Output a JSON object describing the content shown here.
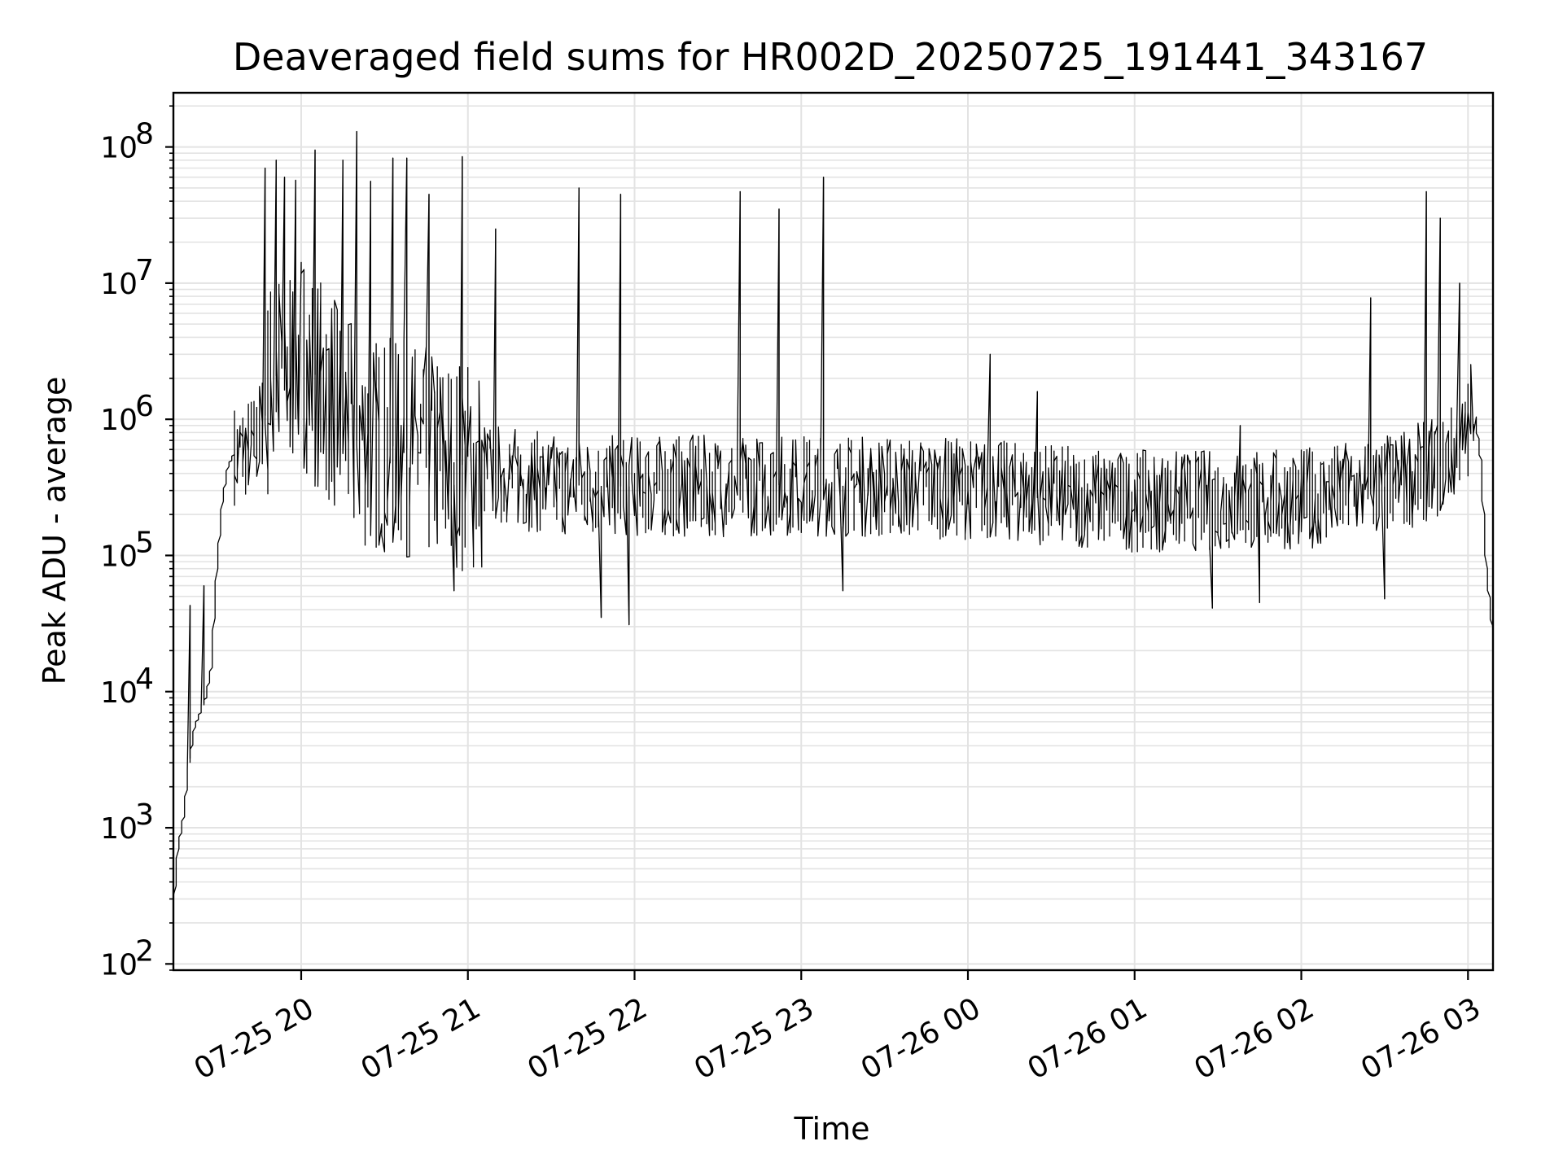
{
  "chart_data": {
    "type": "line",
    "title": "Deaveraged field sums for HR002D_20250725_191441_343167",
    "xlabel": "Time",
    "ylabel": "Peak ADU - average",
    "yscale": "log",
    "ylim": [
      90,
      250000000
    ],
    "xlim": [
      "2025-07-25 19:14",
      "2025-07-26 03:09"
    ],
    "grid": true,
    "line_color": "#000000",
    "x_ticks": [
      {
        "t": "2025-07-25 20:00",
        "label": "07-25 20"
      },
      {
        "t": "2025-07-25 21:00",
        "label": "07-25 21"
      },
      {
        "t": "2025-07-25 22:00",
        "label": "07-25 22"
      },
      {
        "t": "2025-07-25 23:00",
        "label": "07-25 23"
      },
      {
        "t": "2025-07-26 00:00",
        "label": "07-26 00"
      },
      {
        "t": "2025-07-26 01:00",
        "label": "07-26 01"
      },
      {
        "t": "2025-07-26 02:00",
        "label": "07-26 02"
      },
      {
        "t": "2025-07-26 03:00",
        "label": "07-26 03"
      }
    ],
    "y_ticks": [
      {
        "value": 100,
        "base": "10",
        "exp": "2"
      },
      {
        "value": 1000,
        "base": "10",
        "exp": "3"
      },
      {
        "value": 10000,
        "base": "10",
        "exp": "4"
      },
      {
        "value": 100000,
        "base": "10",
        "exp": "5"
      },
      {
        "value": 1000000,
        "base": "10",
        "exp": "6"
      },
      {
        "value": 10000000,
        "base": "10",
        "exp": "7"
      },
      {
        "value": 100000000,
        "base": "10",
        "exp": "8"
      }
    ],
    "series": [
      {
        "points": [
          [
            "2025-07-25 19:14",
            200
          ],
          [
            "2025-07-25 19:16",
            700
          ],
          [
            "2025-07-25 19:18",
            1200
          ],
          [
            "2025-07-25 19:20",
            3000
          ],
          [
            "2025-07-25 19:22",
            5500
          ],
          [
            "2025-07-25 19:24",
            7000
          ],
          [
            "2025-07-25 19:26",
            9000
          ],
          [
            "2025-07-25 19:28",
            15000
          ],
          [
            "2025-07-25 19:30",
            80000
          ],
          [
            "2025-07-25 19:32",
            250000
          ],
          [
            "2025-07-25 19:34",
            450000
          ],
          [
            "2025-07-25 19:36",
            550000
          ],
          [
            "2025-07-25 19:40",
            600000
          ],
          [
            "2025-07-25 19:45",
            700000
          ],
          [
            "2025-07-25 19:50",
            2000000
          ],
          [
            "2025-07-25 20:00",
            3000000
          ],
          [
            "2025-07-25 20:10",
            1500000
          ],
          [
            "2025-07-25 20:20",
            700000
          ],
          [
            "2025-07-25 20:40",
            600000
          ],
          [
            "2025-07-25 21:00",
            450000
          ],
          [
            "2025-07-25 21:30",
            330000
          ],
          [
            "2025-07-25 22:00",
            320000
          ],
          [
            "2025-07-25 23:00",
            330000
          ],
          [
            "2025-07-26 00:00",
            310000
          ],
          [
            "2025-07-26 01:00",
            250000
          ],
          [
            "2025-07-26 02:00",
            260000
          ],
          [
            "2025-07-26 02:30",
            320000
          ],
          [
            "2025-07-26 02:50",
            450000
          ],
          [
            "2025-07-26 03:00",
            700000
          ],
          [
            "2025-07-26 03:02",
            1500000
          ],
          [
            "2025-07-26 03:05",
            500000
          ],
          [
            "2025-07-26 03:07",
            80000
          ],
          [
            "2025-07-26 03:09",
            30000
          ]
        ],
        "spikes": [
          [
            "2025-07-25 19:20",
            43000
          ],
          [
            "2025-07-25 19:25",
            60000
          ],
          [
            "2025-07-25 19:47",
            70000000
          ],
          [
            "2025-07-25 19:51",
            80000000
          ],
          [
            "2025-07-25 19:54",
            60000000
          ],
          [
            "2025-07-25 19:58",
            57000000
          ],
          [
            "2025-07-25 20:05",
            95000000
          ],
          [
            "2025-07-25 20:15",
            80000000
          ],
          [
            "2025-07-25 20:20",
            130000000
          ],
          [
            "2025-07-25 20:25",
            56000000
          ],
          [
            "2025-07-25 20:33",
            83000000
          ],
          [
            "2025-07-25 20:38",
            83000000
          ],
          [
            "2025-07-25 20:46",
            45000000
          ],
          [
            "2025-07-25 20:58",
            85000000
          ],
          [
            "2025-07-25 21:10",
            25000000
          ],
          [
            "2025-07-25 21:40",
            50000000
          ],
          [
            "2025-07-25 21:55",
            45000000
          ],
          [
            "2025-07-25 22:38",
            47000000
          ],
          [
            "2025-07-25 22:52",
            35000000
          ],
          [
            "2025-07-25 23:08",
            60000000
          ],
          [
            "2025-07-26 00:08",
            3000000
          ],
          [
            "2025-07-26 00:25",
            1600000
          ],
          [
            "2025-07-26 01:38",
            900000
          ],
          [
            "2025-07-26 02:25",
            7800000
          ],
          [
            "2025-07-26 02:45",
            47000000
          ],
          [
            "2025-07-26 02:50",
            30000000
          ],
          [
            "2025-07-26 02:57",
            10000000
          ]
        ],
        "dips": [
          [
            "2025-07-25 20:55",
            55000
          ],
          [
            "2025-07-25 21:48",
            35000
          ],
          [
            "2025-07-25 21:58",
            31000
          ],
          [
            "2025-07-25 23:15",
            55000
          ],
          [
            "2025-07-26 01:28",
            41000
          ],
          [
            "2025-07-26 01:45",
            45000
          ],
          [
            "2025-07-26 02:30",
            48000
          ]
        ]
      }
    ]
  }
}
